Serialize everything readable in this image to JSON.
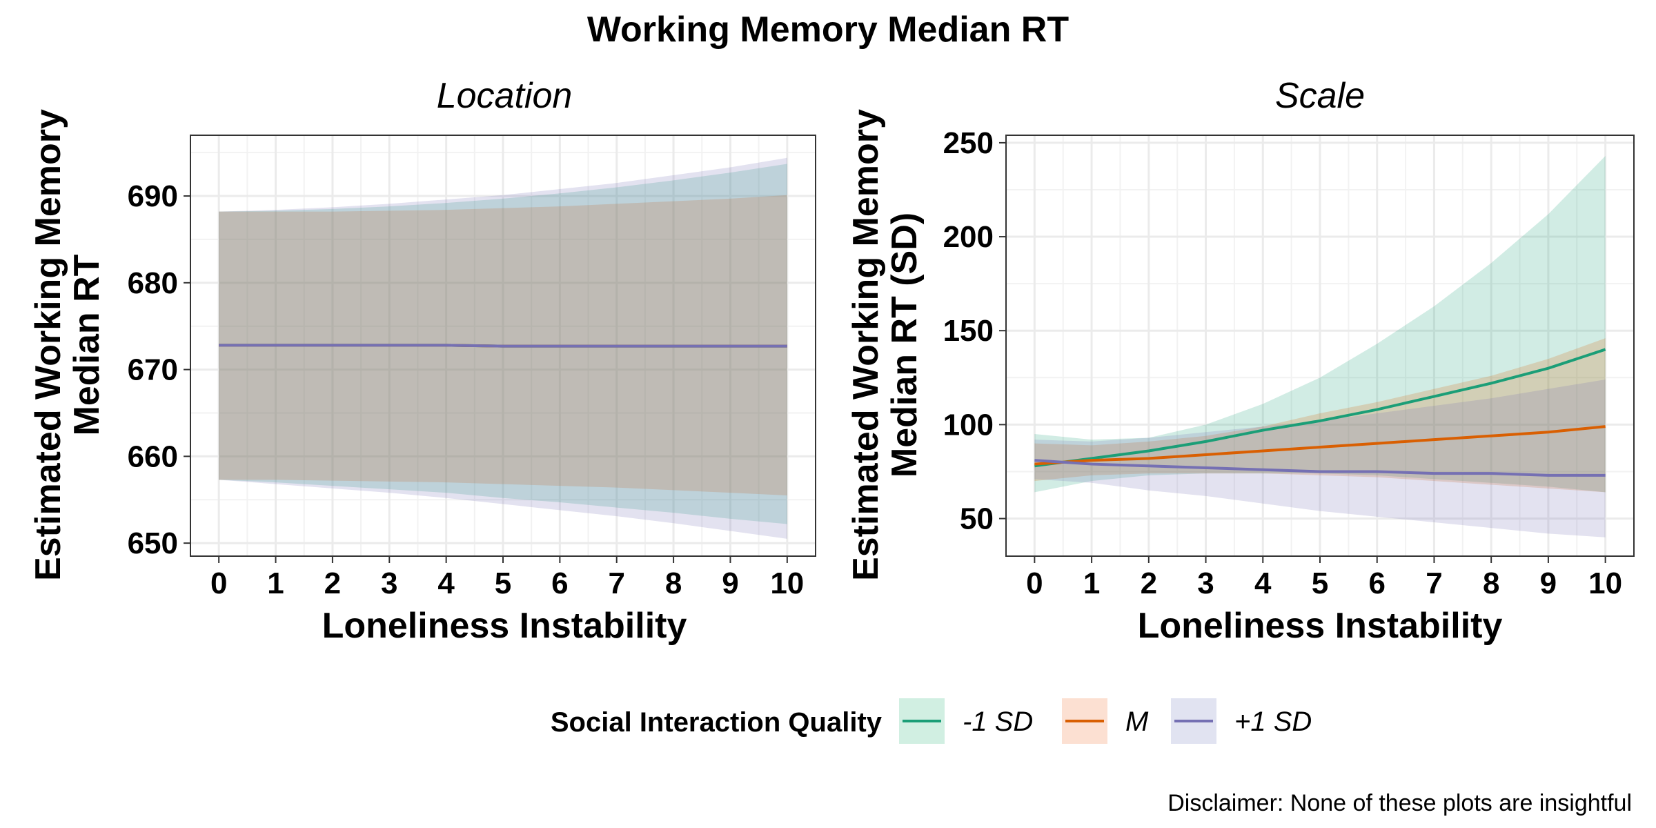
{
  "chart_data": {
    "type": "line",
    "title": "Working Memory Median RT",
    "caption": "Disclaimer: None of these plots are insightful",
    "legend": {
      "title": "Social Interaction Quality",
      "position": "bottom",
      "entries": [
        {
          "label": "-1 SD",
          "line_color": "#1B9E77",
          "fill_color": "#D1EFE2"
        },
        {
          "label": "M",
          "line_color": "#D95F02",
          "fill_color": "#FCE0D2"
        },
        {
          "label": "+1 SD",
          "line_color": "#7570B3",
          "fill_color": "#E1E3F1"
        }
      ]
    },
    "panels": [
      {
        "strip": "Location",
        "xlabel": "Loneliness Instability",
        "ylabel_lines": [
          "Estimated Working Memory",
          "Median RT"
        ],
        "xlim": [
          -0.5,
          10.5
        ],
        "ylim": [
          648.5,
          697
        ],
        "xticks": [
          0,
          1,
          2,
          3,
          4,
          5,
          6,
          7,
          8,
          9,
          10
        ],
        "yticks": [
          650,
          660,
          670,
          680,
          690
        ],
        "grid": true,
        "x": [
          0,
          1,
          2,
          3,
          4,
          5,
          6,
          7,
          8,
          9,
          10
        ],
        "series": [
          {
            "name": "-1 SD",
            "values": [
              672.8,
              672.8,
              672.8,
              672.8,
              672.8,
              672.7,
              672.7,
              672.7,
              672.7,
              672.7,
              672.7
            ],
            "lower": [
              657.3,
              657.0,
              656.6,
              656.2,
              655.8,
              655.2,
              654.7,
              654.1,
              653.5,
              652.8,
              652.2
            ],
            "upper": [
              688.2,
              688.3,
              688.5,
              688.8,
              689.2,
              689.7,
              690.3,
              691.0,
              691.8,
              692.7,
              693.7
            ]
          },
          {
            "name": "M",
            "values": [
              672.8,
              672.8,
              672.8,
              672.8,
              672.8,
              672.7,
              672.7,
              672.7,
              672.7,
              672.7,
              672.7
            ],
            "lower": [
              657.3,
              657.3,
              657.2,
              657.1,
              657.0,
              656.8,
              656.6,
              656.4,
              656.1,
              655.8,
              655.5
            ],
            "upper": [
              688.2,
              688.2,
              688.2,
              688.3,
              688.4,
              688.6,
              688.8,
              689.1,
              689.4,
              689.7,
              690.1
            ]
          },
          {
            "name": "+1 SD",
            "values": [
              672.8,
              672.8,
              672.8,
              672.8,
              672.8,
              672.7,
              672.7,
              672.7,
              672.7,
              672.7,
              672.7
            ],
            "lower": [
              657.3,
              656.8,
              656.3,
              655.8,
              655.2,
              654.5,
              653.8,
              653.1,
              652.3,
              651.4,
              650.5
            ],
            "upper": [
              688.2,
              688.4,
              688.7,
              689.1,
              689.6,
              690.1,
              690.8,
              691.5,
              692.4,
              693.3,
              694.4
            ]
          }
        ]
      },
      {
        "strip": "Scale",
        "xlabel": "Loneliness Instability",
        "ylabel_lines": [
          "Estimated Working Memory",
          "Median RT (SD)"
        ],
        "xlim": [
          -0.5,
          10.5
        ],
        "ylim": [
          30,
          254
        ],
        "xticks": [
          0,
          1,
          2,
          3,
          4,
          5,
          6,
          7,
          8,
          9,
          10
        ],
        "yticks": [
          50,
          100,
          150,
          200,
          250
        ],
        "grid": true,
        "x": [
          0,
          1,
          2,
          3,
          4,
          5,
          6,
          7,
          8,
          9,
          10
        ],
        "series": [
          {
            "name": "-1 SD",
            "values": [
              78,
              82,
              86,
              91,
              97,
              102,
              108,
              115,
              122,
              130,
              140
            ],
            "lower": [
              64,
              70,
              73,
              74,
              74,
              74,
              73,
              71,
              69,
              67,
              64
            ],
            "upper": [
              95,
              92,
              93,
              100,
              111,
              125,
              143,
              163,
              186,
              212,
              243
            ]
          },
          {
            "name": "M",
            "values": [
              79,
              81,
              82,
              84,
              86,
              88,
              90,
              92,
              94,
              96,
              99
            ],
            "lower": [
              70,
              73,
              74,
              74,
              74,
              73,
              72,
              70,
              68,
              66,
              64
            ],
            "upper": [
              90,
              89,
              91,
              94,
              99,
              106,
              112,
              119,
              126,
              135,
              146
            ]
          },
          {
            "name": "+1 SD",
            "values": [
              81,
              79,
              78,
              77,
              76,
              75,
              75,
              74,
              74,
              73,
              73
            ],
            "lower": [
              71,
              69,
              65,
              62,
              58,
              54,
              51,
              48,
              45,
              42,
              40
            ],
            "upper": [
              92,
              91,
              93,
              96,
              99,
              102,
              106,
              110,
              114,
              119,
              124
            ]
          }
        ]
      }
    ]
  }
}
